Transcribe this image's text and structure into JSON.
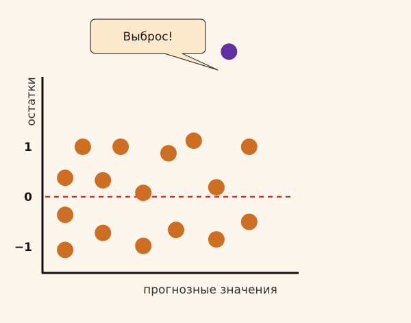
{
  "chart_data": {
    "type": "scatter",
    "title": "",
    "xlabel": "прогнозные значения",
    "ylabel": "остатки",
    "ylim": [
      -1.6,
      2.9
    ],
    "xlim": [
      0,
      1
    ],
    "yticks": [
      {
        "value": 1,
        "label": "1"
      },
      {
        "value": 0,
        "label": "0"
      },
      {
        "value": -1,
        "label": "−1"
      }
    ],
    "grid": false,
    "reference_line": {
      "y": 0,
      "style": "dashed",
      "color": "#e02020"
    },
    "series": [
      {
        "color": "#cd6e22",
        "points": [
          {
            "x": 0.16,
            "y": 1.0
          },
          {
            "x": 0.31,
            "y": 1.0
          },
          {
            "x": 0.5,
            "y": 0.87
          },
          {
            "x": 0.6,
            "y": 1.12
          },
          {
            "x": 0.82,
            "y": 1.0
          },
          {
            "x": 0.09,
            "y": 0.38
          },
          {
            "x": 0.24,
            "y": 0.33
          },
          {
            "x": 0.4,
            "y": 0.08
          },
          {
            "x": 0.69,
            "y": 0.19
          },
          {
            "x": 0.09,
            "y": -0.36
          },
          {
            "x": 0.24,
            "y": -0.72
          },
          {
            "x": 0.4,
            "y": -0.98
          },
          {
            "x": 0.53,
            "y": -0.66
          },
          {
            "x": 0.69,
            "y": -0.85
          },
          {
            "x": 0.82,
            "y": -0.5
          },
          {
            "x": 0.09,
            "y": -1.06
          }
        ]
      },
      {
        "color": "#6030a0",
        "points": [
          {
            "x": 0.74,
            "y": 2.9
          }
        ]
      }
    ],
    "annotation": {
      "text": "Выброс!",
      "box_fill": "#fce9cb",
      "box_stroke": "#3a3a3a"
    }
  }
}
